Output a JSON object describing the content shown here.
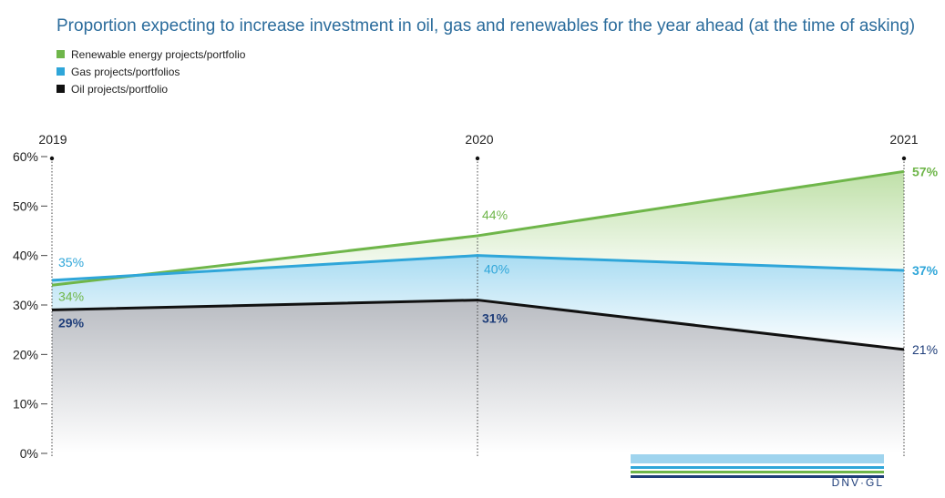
{
  "chart_data": {
    "type": "area",
    "title": "Proportion expecting to increase investment in oil, gas and renewables for the year ahead (at the time of asking)",
    "categories": [
      "2019",
      "2020",
      "2021"
    ],
    "ylim": [
      0,
      60
    ],
    "yticks": [
      "0%",
      "10%",
      "20%",
      "30%",
      "40%",
      "50%",
      "60%"
    ],
    "legend_position": "top-left",
    "series": [
      {
        "name": "Renewable energy projects/portfolio",
        "values": [
          34,
          44,
          57
        ],
        "labels": [
          "34%",
          "44%",
          "57%"
        ],
        "color": "#6fb64a"
      },
      {
        "name": "Gas projects/portfolios",
        "values": [
          35,
          40,
          37
        ],
        "labels": [
          "35%",
          "40%",
          "37%"
        ],
        "color": "#2fa6d9"
      },
      {
        "name": "Oil projects/portfolio",
        "values": [
          29,
          31,
          21
        ],
        "labels": [
          "29%",
          "31%",
          "21%"
        ],
        "color": "#111111"
      }
    ]
  },
  "logo_text": "DNV·GL"
}
